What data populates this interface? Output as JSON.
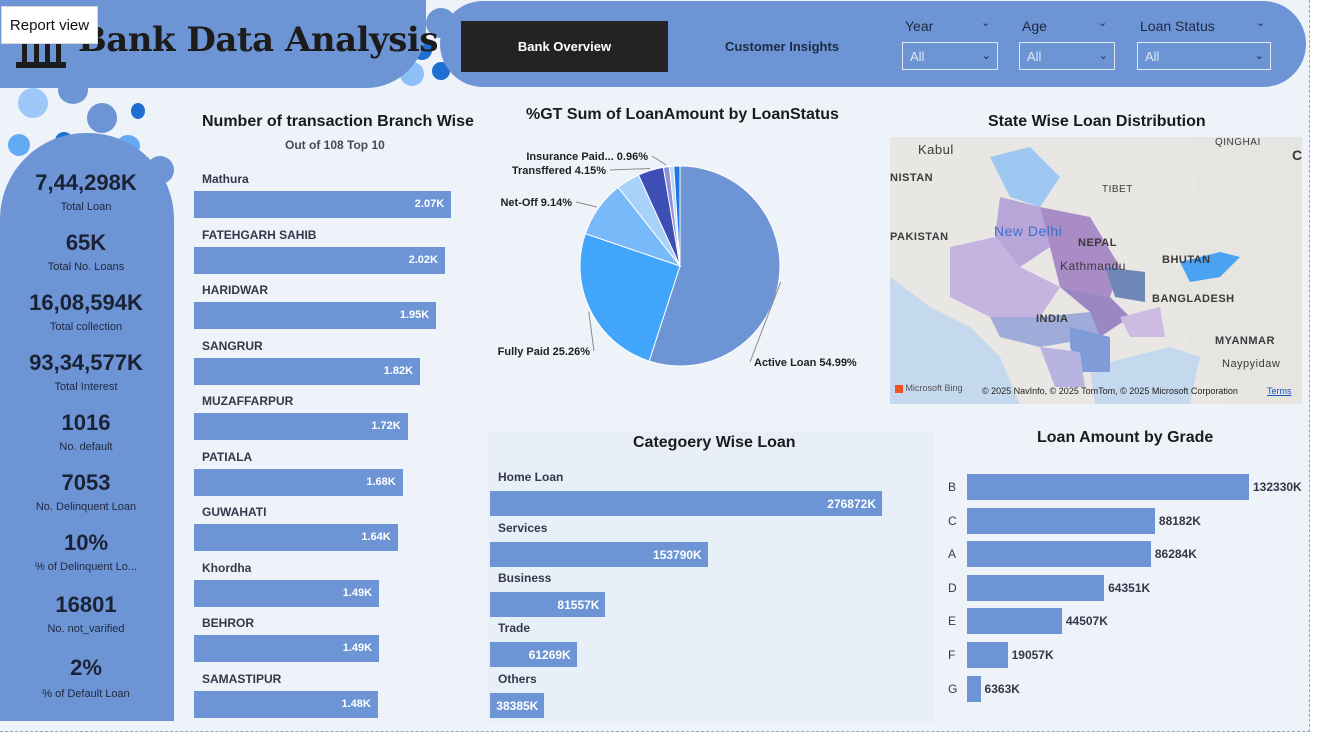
{
  "report_view_label": "Report view",
  "header": {
    "title": "Bank Data Analysis",
    "nav": {
      "active": "Bank Overview",
      "inactive": "Customer Insights"
    },
    "slicers": [
      {
        "label": "Year",
        "value": "All"
      },
      {
        "label": "Age",
        "value": "All"
      },
      {
        "label": "Loan Status",
        "value": "All"
      }
    ]
  },
  "kpis": [
    {
      "value": "7,44,298K",
      "label": "Total Loan"
    },
    {
      "value": "65K",
      "label": "Total No. Loans"
    },
    {
      "value": "16,08,594K",
      "label": "Total collection"
    },
    {
      "value": "93,34,577K",
      "label": "Total Interest"
    },
    {
      "value": "1016",
      "label": "No. default"
    },
    {
      "value": "7053",
      "label": "No. Delinquent Loan"
    },
    {
      "value": "10%",
      "label": "% of Delinquent Lo..."
    },
    {
      "value": "16801",
      "label": "No. not_varified"
    },
    {
      "value": "2%",
      "label": "% of Default Loan"
    }
  ],
  "branch_chart": {
    "title": "Number of transaction Branch Wise",
    "subtitle": "Out of 108 Top 10"
  },
  "pie_chart": {
    "title": "%GT Sum of LoanAmount by LoanStatus"
  },
  "map": {
    "title": "State Wise Loan Distribution",
    "labels": {
      "kabul": "Kabul",
      "qinghai": "QINGHAI",
      "tibet": "TIBET",
      "nistan": "NISTAN",
      "pakistan": "PAKISTAN",
      "new_delhi": "New Delhi",
      "nepal": "NEPAL",
      "kathmandu": "Kathmandu",
      "bhutan": "BHUTAN",
      "bangladesh": "BANGLADESH",
      "india": "INDIA",
      "myanmar": "MYANMAR",
      "naypyidaw": "Naypyidaw",
      "c": "C"
    },
    "bing": "Microsoft Bing",
    "copyright": "© 2025 NavInfo, © 2025 TomTom, © 2025 Microsoft Corporation",
    "terms": "Terms"
  },
  "category_chart": {
    "title": "Categoery Wise Loan"
  },
  "grade_chart": {
    "title": "Loan Amount by Grade"
  },
  "colors": {
    "accent": "#6d94d4",
    "dark": "#232323",
    "background": "#eef3fa"
  },
  "chart_data": [
    {
      "type": "bar",
      "orientation": "horizontal",
      "title": "Number of transaction Branch Wise",
      "subtitle": "Out of 108 Top 10",
      "categories": [
        "Mathura",
        "FATEHGARH SAHIB",
        "HARIDWAR",
        "SANGRUR",
        "MUZAFFARPUR",
        "PATIALA",
        "GUWAHATI",
        "Khordha",
        "BEHROR",
        "SAMASTIPUR"
      ],
      "values": [
        2070,
        2020,
        1950,
        1820,
        1720,
        1680,
        1640,
        1490,
        1490,
        1480
      ],
      "value_labels": [
        "2.07K",
        "2.02K",
        "1.95K",
        "1.82K",
        "1.72K",
        "1.68K",
        "1.64K",
        "1.49K",
        "1.49K",
        "1.48K"
      ],
      "xlim": [
        0,
        2270
      ]
    },
    {
      "type": "pie",
      "title": "%GT Sum of LoanAmount by LoanStatus",
      "slices": [
        {
          "label": "Active Loan",
          "value": 54.99,
          "display": "Active Loan 54.99%",
          "color": "#6d94d4"
        },
        {
          "label": "Fully Paid",
          "value": 25.26,
          "display": "Fully Paid 25.26%",
          "color": "#41a5fb"
        },
        {
          "label": "Net-Off",
          "value": 9.14,
          "display": "Net-Off 9.14%",
          "color": "#78b9f9"
        },
        {
          "label": "Other",
          "value": 3.8,
          "color": "#a9d2fb"
        },
        {
          "label": "Transffered",
          "value": 4.15,
          "display": "Transffered 4.15%",
          "color": "#3d4fb5"
        },
        {
          "label": "Insurance Paid...",
          "value": 0.96,
          "display": "Insurance Paid... 0.96%",
          "color": "#8f8fd4"
        },
        {
          "label": "Other 2",
          "value": 0.7,
          "color": "#bcd7f5"
        },
        {
          "label": "Other 3",
          "value": 1.0,
          "color": "#1d78e5"
        }
      ]
    },
    {
      "type": "bar",
      "orientation": "horizontal",
      "title": "Categoery Wise Loan",
      "categories": [
        "Home Loan",
        "Services",
        "Business",
        "Trade",
        "Others"
      ],
      "values": [
        276872,
        153790,
        81557,
        61269,
        38385
      ],
      "value_labels": [
        "276872K",
        "153790K",
        "81557K",
        "61269K",
        "38385K"
      ],
      "xlim": [
        0,
        276872
      ]
    },
    {
      "type": "bar",
      "orientation": "horizontal",
      "title": "Loan Amount by Grade",
      "categories": [
        "B",
        "C",
        "A",
        "D",
        "E",
        "F",
        "G"
      ],
      "values": [
        132330,
        88182,
        86284,
        64351,
        44507,
        19057,
        6363
      ],
      "value_labels": [
        "132330K",
        "88182K",
        "86284K",
        "64351K",
        "44507K",
        "19057K",
        "6363K"
      ],
      "xlim": [
        0,
        132330
      ]
    }
  ]
}
